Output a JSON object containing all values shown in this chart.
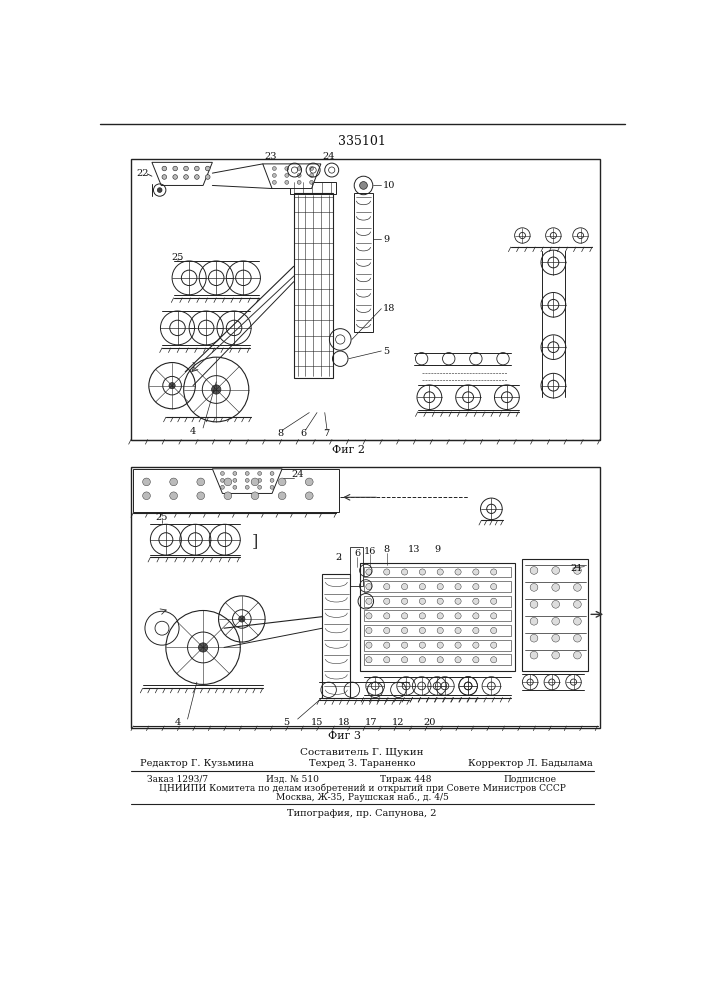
{
  "patent_number": "335101",
  "fig2_label": "Фиг 2",
  "fig3_label": "Фиг 3",
  "composer": "Составитель Г. Щукин",
  "editor": "Редактор Г. Кузьмина",
  "techred": "Техред З. Тараненко",
  "corrector": "Корректор Л. Бадылама",
  "order": "Заказ 1293/7",
  "edition": "Изд. № 510",
  "circulation": "Тираж 448",
  "subscription": "Подписное",
  "org_line": "ЦНИИПИ Комитета по делам изобретений и открытий при Совете Министров СССР",
  "address": "Москва, Ж-35, Раушская наб., д. 4/5",
  "print_house": "Типография, пр. Сапунова, 2",
  "bg_color": "#ffffff"
}
